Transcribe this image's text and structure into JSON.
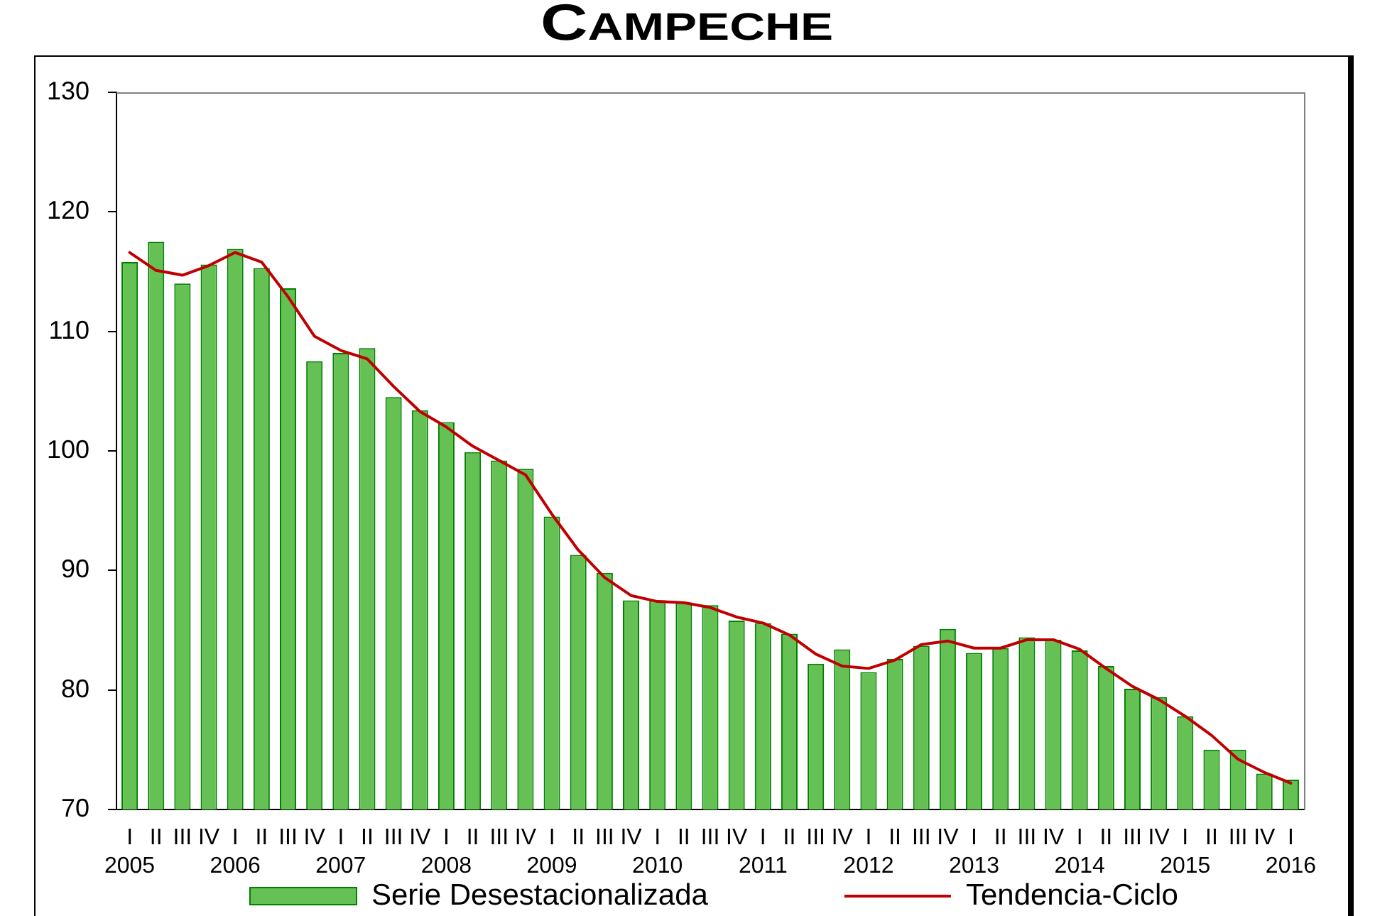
{
  "chart_data": {
    "type": "bar",
    "title": "CAMPECHE",
    "categories": [
      "I",
      "II",
      "III",
      "IV",
      "I",
      "II",
      "III",
      "IV",
      "I",
      "II",
      "III",
      "IV",
      "I",
      "II",
      "III",
      "IV",
      "I",
      "II",
      "III",
      "IV",
      "I",
      "II",
      "III",
      "IV",
      "I",
      "II",
      "III",
      "IV",
      "I",
      "II",
      "III",
      "IV",
      "I",
      "II",
      "III",
      "IV",
      "I",
      "II",
      "III",
      "IV",
      "I",
      "II",
      "III",
      "IV",
      "I"
    ],
    "series": [
      {
        "name": "Serie Desestacionalizada",
        "color": "#66c155",
        "values": [
          115.8,
          117.5,
          114.0,
          115.6,
          116.9,
          115.3,
          113.6,
          107.5,
          108.2,
          108.6,
          104.5,
          103.4,
          102.4,
          99.9,
          99.2,
          98.5,
          94.5,
          91.3,
          89.8,
          87.5,
          87.5,
          87.3,
          87.1,
          85.8,
          85.6,
          84.7,
          82.2,
          83.4,
          81.5,
          82.6,
          83.7,
          85.1,
          83.1,
          83.5,
          84.4,
          84.2,
          83.3,
          82.0,
          80.1,
          79.4,
          77.8,
          75.0,
          75.0,
          73.0,
          72.5
        ]
      },
      {
        "name": "Tendencia-Ciclo",
        "type": "line",
        "color": "#c00000",
        "values": [
          116.6,
          115.1,
          114.7,
          115.5,
          116.6,
          115.8,
          112.9,
          109.6,
          108.4,
          107.7,
          105.4,
          103.3,
          102.0,
          100.4,
          99.2,
          98.0,
          94.7,
          91.7,
          89.4,
          87.9,
          87.4,
          87.3,
          86.9,
          86.1,
          85.6,
          84.6,
          83.0,
          82.0,
          81.8,
          82.5,
          83.8,
          84.1,
          83.5,
          83.5,
          84.2,
          84.2,
          83.4,
          81.8,
          80.3,
          79.2,
          77.8,
          76.2,
          74.2,
          73.1,
          72.2
        ]
      }
    ],
    "x2lim": [
      2004.875,
      2016.125
    ],
    "x2ticks": [
      2005,
      2006,
      2007,
      2008,
      2009,
      2010,
      2011,
      2012,
      2013,
      2014,
      2015,
      2016
    ],
    "ylim": [
      70,
      130
    ],
    "yticks": [
      70,
      80,
      90,
      100,
      110,
      120,
      130
    ],
    "grid": false,
    "legend": "bottom",
    "marker": "none"
  }
}
